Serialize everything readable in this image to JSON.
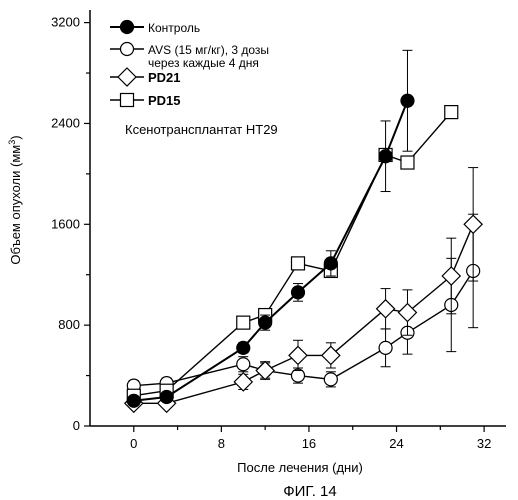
{
  "chart_data": {
    "type": "line",
    "xlabel": "После лечения (дни)",
    "ylabel_main": "Объем опухоли (мм",
    "ylabel_sup": "3",
    "ylabel_tail": ")",
    "xlim": [
      -4,
      34
    ],
    "ylim": [
      0,
      3300
    ],
    "xticks": [
      0,
      8,
      16,
      24,
      32
    ],
    "yticks": [
      0,
      800,
      1600,
      2400,
      3200
    ],
    "annotation": "Ксенотрансплантат HT29",
    "caption": "ФИГ. 14",
    "legend_position": "top-left",
    "series": [
      {
        "name_lines": [
          "Контроль"
        ],
        "marker": "circle-filled",
        "bold": false,
        "x": [
          0,
          3,
          10,
          12,
          15,
          18,
          23,
          25
        ],
        "y": [
          200,
          230,
          620,
          820,
          1060,
          1290,
          2140,
          2580
        ],
        "err": [
          30,
          30,
          40,
          60,
          70,
          100,
          280,
          400
        ]
      },
      {
        "name_lines": [
          "AVS (15 мг/кг), 3 дозы",
          "через каждые 4 дня"
        ],
        "marker": "circle-open",
        "bold": false,
        "x": [
          0,
          3,
          10,
          12,
          15,
          18,
          23,
          25,
          29,
          31
        ],
        "y": [
          320,
          340,
          490,
          440,
          400,
          370,
          620,
          740,
          960,
          1230
        ],
        "err": [
          40,
          40,
          60,
          60,
          60,
          60,
          150,
          170,
          370,
          450
        ]
      },
      {
        "name_lines": [
          "PD21"
        ],
        "marker": "diamond-open",
        "bold": true,
        "x": [
          0,
          3,
          10,
          12,
          15,
          18,
          23,
          25,
          29,
          31
        ],
        "y": [
          180,
          180,
          350,
          440,
          560,
          560,
          930,
          900,
          1190,
          1600
        ],
        "err": [
          30,
          30,
          60,
          70,
          120,
          100,
          160,
          180,
          300,
          450
        ]
      },
      {
        "name_lines": [
          "PD15"
        ],
        "marker": "square-open",
        "bold": true,
        "x": [
          0,
          3,
          10,
          12,
          18,
          15,
          23,
          25,
          29
        ],
        "y": [
          240,
          280,
          820,
          880,
          1230,
          1290,
          2150,
          2090,
          2490
        ],
        "err": [
          30,
          30,
          0,
          0,
          0,
          0,
          0,
          0,
          0
        ]
      }
    ]
  }
}
